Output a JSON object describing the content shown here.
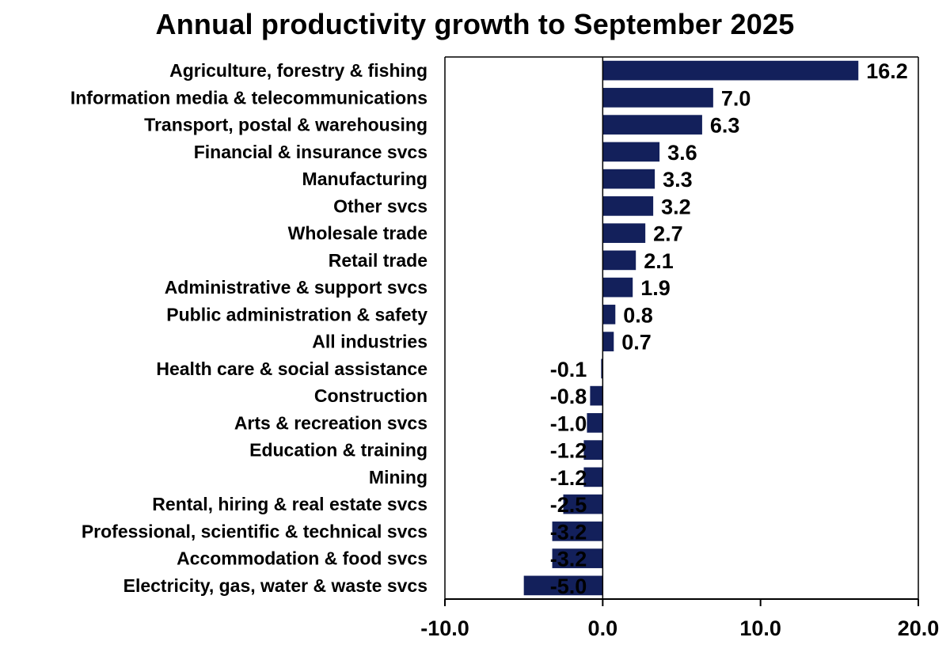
{
  "chart_data": {
    "type": "bar",
    "orientation": "horizontal",
    "title": "Annual productivity growth to September 2025",
    "xlabel": "",
    "ylabel": "",
    "categories": [
      "Agriculture, forestry & fishing",
      "Information media & telecommunications",
      "Transport, postal & warehousing",
      "Financial & insurance svcs",
      "Manufacturing",
      "Other svcs",
      "Wholesale trade",
      "Retail trade",
      "Administrative & support svcs",
      "Public administration & safety",
      "All industries",
      "Health care & social assistance",
      "Construction",
      "Arts & recreation svcs",
      "Education & training",
      "Mining",
      "Rental, hiring & real estate svcs",
      "Professional, scientific & technical svcs",
      "Accommodation & food svcs",
      "Electricity, gas, water & waste svcs"
    ],
    "values": [
      16.2,
      7.0,
      6.3,
      3.6,
      3.3,
      3.2,
      2.7,
      2.1,
      1.9,
      0.8,
      0.7,
      -0.1,
      -0.8,
      -1.0,
      -1.2,
      -1.2,
      -2.5,
      -3.2,
      -3.2,
      -5.0
    ],
    "value_labels": [
      "16.2",
      "7.0",
      "6.3",
      "3.6",
      "3.3",
      "3.2",
      "2.7",
      "2.1",
      "1.9",
      "0.8",
      "0.7",
      "-0.1",
      "-0.8",
      "-1.0",
      "-1.2",
      "-1.2",
      "-2.5",
      "-3.2",
      "-3.2",
      "-5.0"
    ],
    "xlim": [
      -10,
      20
    ],
    "xticks": [
      -10,
      0,
      10,
      20
    ],
    "xtick_labels": [
      "-10.0",
      "0.0",
      "10.0",
      "20.0"
    ],
    "grid": false,
    "legend": "none",
    "bar_color": "#13205B",
    "axis_color": "#000000"
  }
}
